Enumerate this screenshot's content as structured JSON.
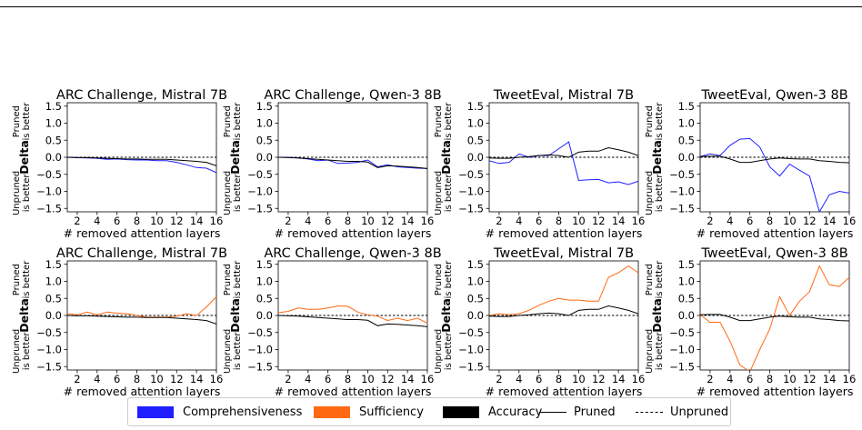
{
  "colors": {
    "comprehensiveness": "#1f1fff",
    "sufficiency": "#ff6a13",
    "accuracy": "#000000"
  },
  "legend": {
    "items": [
      {
        "key": "comprehensiveness",
        "label": "Comprehensiveness",
        "kind": "swatch",
        "color": "#1f1fff"
      },
      {
        "key": "sufficiency",
        "label": "Sufficiency",
        "kind": "swatch",
        "color": "#ff6a13"
      },
      {
        "key": "accuracy",
        "label": "Accuracy",
        "kind": "swatch",
        "color": "#000000"
      },
      {
        "key": "pruned",
        "label": "Pruned",
        "kind": "line"
      },
      {
        "key": "unpruned",
        "label": "Unpruned",
        "kind": "dashed"
      }
    ]
  },
  "chart_data": [
    {
      "type": "line",
      "title": "ARC Challenge, Mistral 7B",
      "xlabel": "# removed attention layers",
      "ylabel": "Delta",
      "ylabel_top": [
        "Pruned",
        "is better"
      ],
      "ylabel_bottom": [
        "Unpruned",
        "is better"
      ],
      "xlim": [
        1,
        16
      ],
      "ylim": [
        -1.6,
        1.6
      ],
      "xticks": [
        2,
        4,
        6,
        8,
        10,
        12,
        14,
        16
      ],
      "yticks": [
        1.5,
        1.0,
        0.5,
        0.0,
        -0.5,
        -1.0,
        -1.5
      ],
      "x": [
        1,
        2,
        3,
        4,
        5,
        6,
        7,
        8,
        9,
        10,
        11,
        12,
        13,
        14,
        15,
        16
      ],
      "series": [
        {
          "name": "Comprehensiveness",
          "color": "#1f1fff",
          "values": [
            0.0,
            -0.01,
            -0.02,
            -0.03,
            -0.06,
            -0.05,
            -0.07,
            -0.08,
            -0.08,
            -0.1,
            -0.1,
            -0.15,
            -0.22,
            -0.3,
            -0.32,
            -0.45
          ]
        },
        {
          "name": "Accuracy",
          "color": "#000000",
          "values": [
            0.0,
            -0.01,
            -0.01,
            -0.02,
            -0.03,
            -0.04,
            -0.05,
            -0.05,
            -0.06,
            -0.06,
            -0.06,
            -0.08,
            -0.1,
            -0.12,
            -0.15,
            -0.25
          ]
        }
      ]
    },
    {
      "type": "line",
      "title": "ARC Challenge, Qwen-3 8B",
      "xlabel": "# removed attention layers",
      "ylabel": "Delta",
      "ylabel_top": [
        "Pruned",
        "is better"
      ],
      "ylabel_bottom": [
        "Unpruned",
        "is better"
      ],
      "xlim": [
        1,
        16
      ],
      "ylim": [
        -1.6,
        1.6
      ],
      "xticks": [
        2,
        4,
        6,
        8,
        10,
        12,
        14,
        16
      ],
      "yticks": [
        1.5,
        1.0,
        0.5,
        0.0,
        -0.5,
        -1.0,
        -1.5
      ],
      "x": [
        1,
        2,
        3,
        4,
        5,
        6,
        7,
        8,
        9,
        10,
        11,
        12,
        13,
        14,
        15,
        16
      ],
      "series": [
        {
          "name": "Comprehensiveness",
          "color": "#1f1fff",
          "values": [
            0.0,
            0.0,
            -0.02,
            -0.05,
            -0.1,
            -0.08,
            -0.18,
            -0.17,
            -0.15,
            -0.08,
            -0.28,
            -0.22,
            -0.28,
            -0.3,
            -0.32,
            -0.33
          ]
        },
        {
          "name": "Accuracy",
          "color": "#000000",
          "values": [
            0.0,
            -0.01,
            -0.02,
            -0.04,
            -0.06,
            -0.08,
            -0.1,
            -0.12,
            -0.12,
            -0.14,
            -0.3,
            -0.25,
            -0.26,
            -0.28,
            -0.3,
            -0.33
          ]
        }
      ]
    },
    {
      "type": "line",
      "title": "TweetEval, Mistral 7B",
      "xlabel": "# removed attention layers",
      "ylabel": "Delta",
      "ylabel_top": [
        "Pruned",
        "is better"
      ],
      "ylabel_bottom": [
        "Unpruned",
        "is better"
      ],
      "xlim": [
        1,
        16
      ],
      "ylim": [
        -1.6,
        1.6
      ],
      "xticks": [
        2,
        4,
        6,
        8,
        10,
        12,
        14,
        16
      ],
      "yticks": [
        1.5,
        1.0,
        0.5,
        0.0,
        -0.5,
        -1.0,
        -1.5
      ],
      "x": [
        1,
        2,
        3,
        4,
        5,
        6,
        7,
        8,
        9,
        10,
        11,
        12,
        13,
        14,
        15,
        16
      ],
      "series": [
        {
          "name": "Comprehensiveness",
          "color": "#1f1fff",
          "values": [
            -0.1,
            -0.18,
            -0.15,
            0.1,
            0.0,
            0.05,
            0.05,
            0.25,
            0.45,
            -0.68,
            -0.66,
            -0.65,
            -0.75,
            -0.72,
            -0.8,
            -0.7
          ]
        },
        {
          "name": "Accuracy",
          "color": "#000000",
          "values": [
            -0.02,
            -0.03,
            -0.03,
            0.0,
            0.02,
            0.05,
            0.07,
            0.05,
            0.0,
            0.15,
            0.18,
            0.18,
            0.28,
            0.22,
            0.15,
            0.05
          ]
        }
      ]
    },
    {
      "type": "line",
      "title": "TweetEval, Qwen-3 8B",
      "xlabel": "# removed attention layers",
      "ylabel": "Delta",
      "ylabel_top": [
        "Pruned",
        "is better"
      ],
      "ylabel_bottom": [
        "Unpruned",
        "is better"
      ],
      "xlim": [
        1,
        16
      ],
      "ylim": [
        -1.6,
        1.6
      ],
      "xticks": [
        2,
        4,
        6,
        8,
        10,
        12,
        14,
        16
      ],
      "yticks": [
        1.5,
        1.0,
        0.5,
        0.0,
        -0.5,
        -1.0,
        -1.5
      ],
      "x": [
        1,
        2,
        3,
        4,
        5,
        6,
        7,
        8,
        9,
        10,
        11,
        12,
        13,
        14,
        15,
        16
      ],
      "series": [
        {
          "name": "Comprehensiveness",
          "color": "#1f1fff",
          "values": [
            0.02,
            0.1,
            0.05,
            0.35,
            0.53,
            0.55,
            0.3,
            -0.28,
            -0.55,
            -0.2,
            -0.38,
            -0.55,
            -1.6,
            -1.1,
            -1.0,
            -1.05
          ]
        },
        {
          "name": "Accuracy",
          "color": "#000000",
          "values": [
            0.02,
            0.03,
            0.03,
            -0.05,
            -0.15,
            -0.15,
            -0.1,
            -0.05,
            -0.02,
            -0.04,
            -0.05,
            -0.05,
            -0.1,
            -0.12,
            -0.15,
            -0.16
          ]
        }
      ]
    },
    {
      "type": "line",
      "title": "ARC Challenge, Mistral 7B",
      "xlabel": "# removed attention layers",
      "ylabel": "Delta",
      "ylabel_top": [
        "Pruned",
        "is better"
      ],
      "ylabel_bottom": [
        "Unpruned",
        "is better"
      ],
      "xlim": [
        1,
        16
      ],
      "ylim": [
        -1.6,
        1.6
      ],
      "xticks": [
        2,
        4,
        6,
        8,
        10,
        12,
        14,
        16
      ],
      "yticks": [
        1.5,
        1.0,
        0.5,
        0.0,
        -0.5,
        -1.0,
        -1.5
      ],
      "x": [
        1,
        2,
        3,
        4,
        5,
        6,
        7,
        8,
        9,
        10,
        11,
        12,
        13,
        14,
        15,
        16
      ],
      "series": [
        {
          "name": "Sufficiency",
          "color": "#ff6a13",
          "values": [
            0.05,
            0.02,
            0.1,
            0.02,
            0.1,
            0.07,
            0.05,
            0.0,
            -0.05,
            -0.05,
            -0.05,
            -0.02,
            0.05,
            0.0,
            0.25,
            0.55
          ]
        },
        {
          "name": "Accuracy",
          "color": "#000000",
          "values": [
            0.0,
            -0.01,
            -0.01,
            -0.02,
            -0.03,
            -0.04,
            -0.05,
            -0.05,
            -0.06,
            -0.06,
            -0.06,
            -0.08,
            -0.1,
            -0.12,
            -0.15,
            -0.25
          ]
        }
      ]
    },
    {
      "type": "line",
      "title": "ARC Challenge, Qwen-3 8B",
      "xlabel": "# removed attention layers",
      "ylabel": "Delta",
      "ylabel_top": [
        "Pruned",
        "is better"
      ],
      "ylabel_bottom": [
        "Unpruned",
        "is better"
      ],
      "xlim": [
        1,
        16
      ],
      "ylim": [
        -1.6,
        1.6
      ],
      "xticks": [
        2,
        4,
        6,
        8,
        10,
        12,
        14,
        16
      ],
      "yticks": [
        1.5,
        1.0,
        0.5,
        0.0,
        -0.5,
        -1.0,
        -1.5
      ],
      "x": [
        1,
        2,
        3,
        4,
        5,
        6,
        7,
        8,
        9,
        10,
        11,
        12,
        13,
        14,
        15,
        16
      ],
      "series": [
        {
          "name": "Sufficiency",
          "color": "#ff6a13",
          "values": [
            0.08,
            0.12,
            0.22,
            0.18,
            0.18,
            0.22,
            0.28,
            0.27,
            0.1,
            0.02,
            -0.02,
            -0.15,
            -0.08,
            -0.15,
            -0.08,
            -0.22
          ]
        },
        {
          "name": "Accuracy",
          "color": "#000000",
          "values": [
            0.0,
            -0.01,
            -0.02,
            -0.04,
            -0.06,
            -0.08,
            -0.1,
            -0.12,
            -0.12,
            -0.14,
            -0.3,
            -0.25,
            -0.26,
            -0.28,
            -0.3,
            -0.33
          ]
        }
      ]
    },
    {
      "type": "line",
      "title": "TweetEval, Mistral 7B",
      "xlabel": "# removed attention layers",
      "ylabel": "Delta",
      "ylabel_top": [
        "Pruned",
        "is better"
      ],
      "ylabel_bottom": [
        "Unpruned",
        "is better"
      ],
      "xlim": [
        1,
        16
      ],
      "ylim": [
        -1.6,
        1.6
      ],
      "xticks": [
        2,
        4,
        6,
        8,
        10,
        12,
        14,
        16
      ],
      "yticks": [
        1.5,
        1.0,
        0.5,
        0.0,
        -0.5,
        -1.0,
        -1.5
      ],
      "x": [
        1,
        2,
        3,
        4,
        5,
        6,
        7,
        8,
        9,
        10,
        11,
        12,
        13,
        14,
        15,
        16
      ],
      "series": [
        {
          "name": "Sufficiency",
          "color": "#ff6a13",
          "values": [
            0.0,
            0.05,
            0.02,
            0.05,
            0.15,
            0.3,
            0.42,
            0.5,
            0.45,
            0.45,
            0.42,
            0.42,
            1.12,
            1.25,
            1.45,
            1.25
          ]
        },
        {
          "name": "Accuracy",
          "color": "#000000",
          "values": [
            -0.02,
            -0.03,
            -0.03,
            0.0,
            0.02,
            0.05,
            0.07,
            0.05,
            0.0,
            0.15,
            0.18,
            0.18,
            0.28,
            0.22,
            0.15,
            0.05
          ]
        }
      ]
    },
    {
      "type": "line",
      "title": "TweetEval, Qwen-3 8B",
      "xlabel": "# removed attention layers",
      "ylabel": "Delta",
      "ylabel_top": [
        "Pruned",
        "is better"
      ],
      "ylabel_bottom": [
        "Unpruned",
        "is better"
      ],
      "xlim": [
        1,
        16
      ],
      "ylim": [
        -1.6,
        1.6
      ],
      "xticks": [
        2,
        4,
        6,
        8,
        10,
        12,
        14,
        16
      ],
      "yticks": [
        1.5,
        1.0,
        0.5,
        0.0,
        -0.5,
        -1.0,
        -1.5
      ],
      "x": [
        1,
        2,
        3,
        4,
        5,
        6,
        7,
        8,
        9,
        10,
        11,
        12,
        13,
        14,
        15,
        16
      ],
      "series": [
        {
          "name": "Sufficiency",
          "color": "#ff6a13",
          "values": [
            0.02,
            -0.2,
            -0.2,
            -0.75,
            -1.45,
            -1.65,
            -1.0,
            -0.4,
            0.55,
            0.0,
            0.42,
            0.7,
            1.45,
            0.9,
            0.85,
            1.12
          ]
        },
        {
          "name": "Accuracy",
          "color": "#000000",
          "values": [
            0.02,
            0.03,
            0.03,
            -0.05,
            -0.15,
            -0.15,
            -0.1,
            -0.05,
            -0.02,
            -0.04,
            -0.05,
            -0.05,
            -0.1,
            -0.12,
            -0.15,
            -0.16
          ]
        }
      ]
    }
  ]
}
